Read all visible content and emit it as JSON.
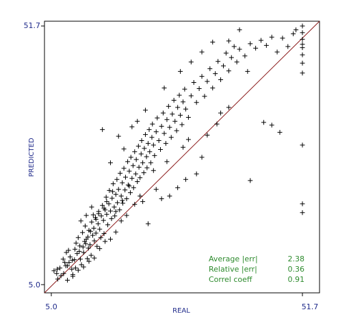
{
  "chart_data": {
    "type": "scatter",
    "title": "",
    "xlabel": "REAL",
    "ylabel": "PREDICTED",
    "xlim": [
      5.0,
      51.7
    ],
    "ylim": [
      5.0,
      51.7
    ],
    "x_ticks": [
      "5.0",
      "51.7"
    ],
    "y_ticks": [
      "51.7",
      "5.0"
    ],
    "grid": false,
    "reference_line": "y = x",
    "colors": {
      "axis_text": "#1f2a8a",
      "stats_text": "#2e8b2e",
      "diagonal": "#8b1a1a",
      "points": "#000000"
    },
    "stats": [
      {
        "label": "Average |err|",
        "value": "2.38"
      },
      {
        "label": "Relative |err|",
        "value": "0.36"
      },
      {
        "label": "Correl coeff",
        "value": "0.91"
      }
    ],
    "points": [
      [
        5.5,
        7.5
      ],
      [
        6.0,
        7.0
      ],
      [
        6.2,
        6.0
      ],
      [
        6.8,
        6.6
      ],
      [
        7.3,
        7.0
      ],
      [
        7.5,
        9.0
      ],
      [
        7.8,
        10.8
      ],
      [
        8.0,
        8.4
      ],
      [
        8.2,
        11.2
      ],
      [
        8.5,
        10.0
      ],
      [
        8.8,
        7.8
      ],
      [
        9.0,
        6.5
      ],
      [
        9.3,
        9.5
      ],
      [
        9.5,
        8.0
      ],
      [
        9.6,
        12.5
      ],
      [
        10.0,
        13.5
      ],
      [
        10.2,
        11.0
      ],
      [
        10.4,
        9.6
      ],
      [
        10.6,
        8.6
      ],
      [
        10.8,
        14.4
      ],
      [
        11.0,
        10.8
      ],
      [
        11.2,
        12.8
      ],
      [
        11.3,
        15.6
      ],
      [
        11.5,
        13.2
      ],
      [
        11.7,
        9.7
      ],
      [
        11.9,
        11.6
      ],
      [
        12.0,
        14.8
      ],
      [
        12.2,
        12.2
      ],
      [
        12.4,
        10.3
      ],
      [
        12.5,
        16.3
      ],
      [
        12.7,
        13.9
      ],
      [
        12.9,
        15.2
      ],
      [
        13.0,
        12.9
      ],
      [
        13.2,
        17.1
      ],
      [
        13.3,
        14.3
      ],
      [
        13.5,
        11.9
      ],
      [
        13.7,
        16.0
      ],
      [
        13.8,
        18.2
      ],
      [
        14.0,
        15.0
      ],
      [
        14.2,
        13.5
      ],
      [
        14.3,
        17.4
      ],
      [
        14.5,
        19.3
      ],
      [
        14.7,
        16.6
      ],
      [
        14.8,
        14.2
      ],
      [
        15.0,
        18.5
      ],
      [
        15.2,
        20.8
      ],
      [
        15.3,
        17.7
      ],
      [
        15.5,
        15.8
      ],
      [
        15.7,
        19.6
      ],
      [
        15.8,
        22.0
      ],
      [
        16.0,
        18.3
      ],
      [
        16.2,
        16.9
      ],
      [
        16.3,
        20.6
      ],
      [
        16.5,
        23.2
      ],
      [
        16.7,
        19.0
      ],
      [
        16.8,
        17.4
      ],
      [
        17.0,
        21.3
      ],
      [
        17.2,
        24.0
      ],
      [
        17.3,
        19.8
      ],
      [
        17.5,
        22.2
      ],
      [
        17.7,
        18.5
      ],
      [
        17.8,
        25.1
      ],
      [
        18.0,
        21.0
      ],
      [
        18.2,
        23.4
      ],
      [
        18.3,
        19.7
      ],
      [
        18.5,
        26.0
      ],
      [
        18.7,
        22.1
      ],
      [
        18.8,
        24.4
      ],
      [
        19.0,
        20.5
      ],
      [
        19.2,
        27.2
      ],
      [
        19.3,
        23.0
      ],
      [
        19.5,
        25.5
      ],
      [
        19.7,
        21.6
      ],
      [
        19.8,
        28.0
      ],
      [
        20.0,
        24.2
      ],
      [
        20.2,
        26.5
      ],
      [
        20.3,
        22.5
      ],
      [
        20.5,
        29.0
      ],
      [
        20.7,
        25.0
      ],
      [
        20.8,
        27.6
      ],
      [
        21.0,
        23.6
      ],
      [
        21.2,
        30.0
      ],
      [
        21.3,
        26.2
      ],
      [
        21.5,
        24.3
      ],
      [
        21.7,
        28.6
      ],
      [
        21.8,
        31.0
      ],
      [
        22.0,
        27.0
      ],
      [
        22.2,
        25.2
      ],
      [
        22.3,
        29.6
      ],
      [
        22.5,
        32.1
      ],
      [
        22.7,
        28.1
      ],
      [
        22.8,
        26.1
      ],
      [
        23.0,
        30.5
      ],
      [
        23.2,
        33.0
      ],
      [
        23.3,
        29.0
      ],
      [
        23.5,
        27.0
      ],
      [
        23.7,
        31.6
      ],
      [
        23.8,
        34.0
      ],
      [
        24.0,
        30.2
      ],
      [
        24.2,
        28.3
      ],
      [
        24.5,
        32.6
      ],
      [
        24.7,
        35.1
      ],
      [
        25.0,
        31.0
      ],
      [
        25.3,
        29.4
      ],
      [
        25.5,
        33.6
      ],
      [
        25.8,
        36.0
      ],
      [
        26.0,
        32.3
      ],
      [
        26.3,
        30.5
      ],
      [
        26.5,
        34.8
      ],
      [
        26.8,
        37.2
      ],
      [
        27.0,
        33.4
      ],
      [
        27.3,
        31.6
      ],
      [
        27.5,
        35.8
      ],
      [
        27.8,
        38.3
      ],
      [
        28.0,
        34.5
      ],
      [
        28.3,
        32.8
      ],
      [
        28.5,
        37.0
      ],
      [
        28.8,
        39.2
      ],
      [
        29.0,
        35.6
      ],
      [
        29.3,
        33.9
      ],
      [
        29.5,
        38.0
      ],
      [
        29.8,
        40.3
      ],
      [
        30.0,
        36.7
      ],
      [
        30.5,
        35.2
      ],
      [
        31.0,
        39.1
      ],
      [
        31.5,
        41.5
      ],
      [
        32.0,
        37.9
      ],
      [
        32.5,
        40.4
      ],
      [
        33.0,
        42.6
      ],
      [
        33.5,
        39.0
      ],
      [
        34.0,
        41.7
      ],
      [
        34.5,
        44.0
      ],
      [
        35.0,
        40.5
      ],
      [
        35.5,
        43.1
      ],
      [
        36.0,
        45.3
      ],
      [
        36.5,
        42.0
      ],
      [
        37.0,
        44.5
      ],
      [
        37.5,
        46.8
      ],
      [
        38.0,
        43.6
      ],
      [
        38.5,
        46.0
      ],
      [
        39.0,
        48.0
      ],
      [
        39.5,
        45.2
      ],
      [
        40.0,
        47.5
      ],
      [
        41.0,
        46.3
      ],
      [
        42.0,
        48.5
      ],
      [
        43.0,
        47.7
      ],
      [
        44.0,
        49.1
      ],
      [
        45.0,
        48.2
      ],
      [
        46.0,
        49.7
      ],
      [
        47.0,
        47.0
      ],
      [
        48.0,
        49.5
      ],
      [
        49.0,
        48.0
      ],
      [
        50.0,
        50.3
      ],
      [
        50.5,
        51.0
      ],
      [
        51.7,
        51.7
      ],
      [
        51.7,
        50.5
      ],
      [
        51.7,
        49.3
      ],
      [
        51.7,
        48.4
      ],
      [
        51.7,
        47.8
      ],
      [
        51.7,
        46.5
      ],
      [
        51.7,
        45.0
      ],
      [
        51.7,
        43.2
      ],
      [
        51.7,
        30.2
      ],
      [
        51.7,
        19.6
      ],
      [
        51.7,
        18.0
      ],
      [
        47.5,
        32.5
      ],
      [
        46.0,
        33.8
      ],
      [
        44.5,
        34.3
      ],
      [
        42.0,
        23.8
      ],
      [
        41.5,
        43.5
      ],
      [
        38.0,
        37.0
      ],
      [
        36.5,
        36.0
      ],
      [
        35.8,
        34.0
      ],
      [
        34.0,
        32.0
      ],
      [
        33.0,
        28.0
      ],
      [
        32.0,
        25.0
      ],
      [
        30.0,
        24.0
      ],
      [
        28.5,
        22.5
      ],
      [
        27.0,
        21.0
      ],
      [
        25.5,
        20.5
      ],
      [
        24.5,
        22.2
      ],
      [
        23.0,
        16.0
      ],
      [
        22.0,
        20.0
      ],
      [
        20.5,
        19.5
      ],
      [
        19.0,
        17.5
      ],
      [
        18.0,
        16.5
      ],
      [
        17.0,
        14.5
      ],
      [
        16.0,
        13.2
      ],
      [
        15.0,
        12.8
      ],
      [
        14.0,
        11.5
      ],
      [
        13.0,
        9.8
      ],
      [
        12.0,
        9.2
      ],
      [
        11.0,
        8.2
      ],
      [
        10.0,
        7.6
      ],
      [
        9.0,
        6.8
      ],
      [
        8.0,
        5.8
      ],
      [
        11.5,
        17.5
      ],
      [
        10.5,
        16.5
      ],
      [
        12.5,
        19.0
      ],
      [
        14.5,
        33.0
      ],
      [
        16.0,
        27.0
      ],
      [
        17.5,
        31.8
      ],
      [
        18.5,
        29.5
      ],
      [
        20.0,
        33.5
      ],
      [
        21.0,
        34.5
      ],
      [
        22.5,
        36.5
      ],
      [
        26.0,
        40.5
      ],
      [
        29.0,
        43.5
      ],
      [
        31.0,
        45.2
      ],
      [
        33.0,
        47.0
      ],
      [
        35.0,
        48.8
      ],
      [
        38.0,
        49.0
      ],
      [
        40.0,
        51.0
      ],
      [
        29.5,
        29.8
      ],
      [
        30.5,
        31.2
      ],
      [
        26.5,
        27.2
      ],
      [
        24.0,
        25.6
      ],
      [
        21.5,
        21.0
      ],
      [
        19.5,
        22.8
      ],
      [
        18.2,
        20.2
      ],
      [
        17.0,
        18.2
      ],
      [
        16.4,
        21.8
      ],
      [
        15.3,
        20.0
      ],
      [
        14.8,
        18.8
      ],
      [
        13.8,
        17.8
      ],
      [
        13.3,
        16.8
      ],
      [
        12.8,
        17.6
      ],
      [
        12.3,
        14.6
      ],
      [
        11.8,
        13.6
      ],
      [
        11.4,
        12.4
      ],
      [
        10.9,
        11.8
      ],
      [
        10.3,
        12.0
      ],
      [
        9.8,
        10.6
      ],
      [
        9.4,
        11.4
      ],
      [
        8.9,
        9.4
      ],
      [
        8.3,
        9.0
      ],
      [
        7.7,
        8.4
      ],
      [
        7.2,
        9.6
      ],
      [
        6.6,
        8.0
      ],
      [
        6.1,
        7.8
      ]
    ]
  }
}
